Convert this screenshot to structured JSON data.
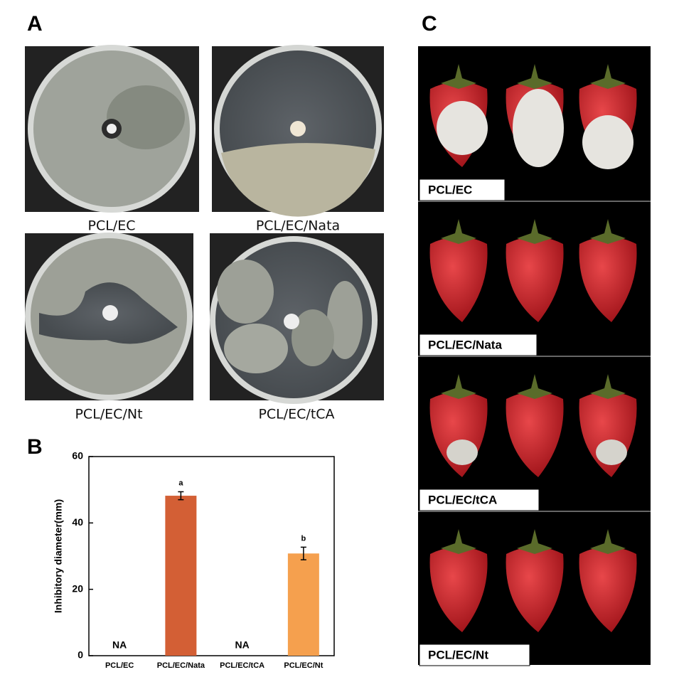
{
  "panel_labels": [
    "A",
    "B",
    "C"
  ],
  "dish_captions": [
    "PCL/EC",
    "PCL/EC/Nata",
    "PCL/EC/Nt",
    "PCL/EC/tCA"
  ],
  "fruit_captions": [
    "PCL/EC",
    "PCL/EC/Nata",
    "PCL/EC/tCA",
    "PCL/EC/Nt"
  ],
  "chart_data": {
    "type": "bar",
    "y_label": "Inhibitory diameter(mm)",
    "categories": [
      "PCL/EC",
      "PCL/EC/Nata",
      "PCL/EC/tCA",
      "PCL/EC/Nt"
    ],
    "values": [
      null,
      48.2,
      null,
      30.8
    ],
    "errors": [
      null,
      1.2,
      null,
      1.9
    ],
    "value_labels": [
      "NA",
      null,
      "NA",
      null
    ],
    "significance": [
      null,
      "a",
      null,
      "b"
    ],
    "colors": [
      "#d35f35",
      "#d35f35",
      "#f5a04e",
      "#f5a04e"
    ],
    "ylim": [
      0,
      60
    ],
    "yticks": [
      0,
      20,
      40,
      60
    ]
  }
}
